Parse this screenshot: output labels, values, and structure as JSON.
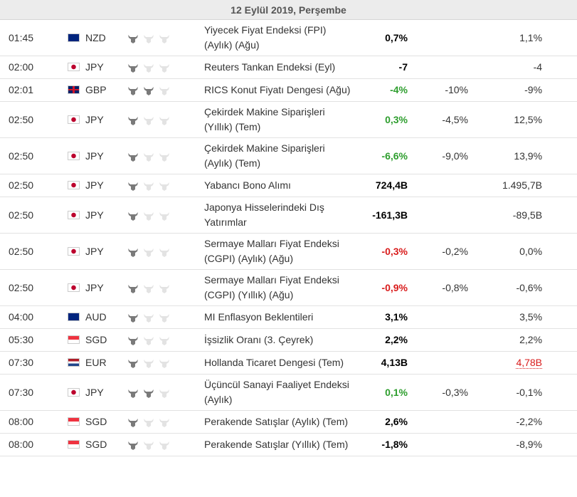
{
  "header": {
    "date": "12 Eylül 2019, Perşembe"
  },
  "table": {
    "rows": [
      {
        "time": "01:45",
        "currency": "NZD",
        "importance": 1,
        "event": "Yiyecek Fiyat Endeksi (FPI) (Aylık) (Ağu)",
        "actual": "0,7%",
        "actual_color": "#000000",
        "previous": "1,1%"
      },
      {
        "time": "02:00",
        "currency": "JPY",
        "importance": 1,
        "event": "Reuters Tankan Endeksi (Eyl)",
        "actual": "-7",
        "actual_color": "#000000",
        "previous": "-4"
      },
      {
        "time": "02:01",
        "currency": "GBP",
        "importance": 2,
        "event": "RICS Konut Fiyatı Dengesi (Ağu)",
        "actual": "-4%",
        "actual_color": "#2e9e2e",
        "forecast": "-10%",
        "previous": "-9%"
      },
      {
        "time": "02:50",
        "currency": "JPY",
        "importance": 1,
        "event": "Çekirdek Makine Siparişleri (Yıllık) (Tem)",
        "actual": "0,3%",
        "actual_color": "#2e9e2e",
        "forecast": "-4,5%",
        "previous": "12,5%"
      },
      {
        "time": "02:50",
        "currency": "JPY",
        "importance": 1,
        "event": "Çekirdek Makine Siparişleri (Aylık) (Tem)",
        "actual": "-6,6%",
        "actual_color": "#2e9e2e",
        "forecast": "-9,0%",
        "previous": "13,9%"
      },
      {
        "time": "02:50",
        "currency": "JPY",
        "importance": 1,
        "event": "Yabancı Bono Alımı",
        "actual": "724,4B",
        "actual_color": "#000000",
        "previous": "1.495,7B"
      },
      {
        "time": "02:50",
        "currency": "JPY",
        "importance": 1,
        "event": "Japonya Hisselerindeki Dış Yatırımlar",
        "actual": "-161,3B",
        "actual_color": "#000000",
        "previous": "-89,5B"
      },
      {
        "time": "02:50",
        "currency": "JPY",
        "importance": 1,
        "event": "Sermaye Malları Fiyat Endeksi (CGPI) (Aylık) (Ağu)",
        "actual": "-0,3%",
        "actual_color": "#d91c1c",
        "forecast": "-0,2%",
        "previous": "0,0%"
      },
      {
        "time": "02:50",
        "currency": "JPY",
        "importance": 1,
        "event": "Sermaye Malları Fiyat Endeksi (CGPI) (Yıllık) (Ağu)",
        "actual": "-0,9%",
        "actual_color": "#d91c1c",
        "forecast": "-0,8%",
        "previous": "-0,6%"
      },
      {
        "time": "04:00",
        "currency": "AUD",
        "importance": 1,
        "event": "MI Enflasyon Beklentileri",
        "actual": "3,1%",
        "actual_color": "#000000",
        "previous": "3,5%"
      },
      {
        "time": "05:30",
        "currency": "SGD",
        "importance": 1,
        "event": "İşsizlik Oranı (3. Çeyrek)",
        "actual": "2,2%",
        "actual_color": "#000000",
        "previous": "2,2%"
      },
      {
        "time": "07:30",
        "currency": "EUR",
        "importance": 1,
        "event": "Hollanda Ticaret Dengesi (Tem)",
        "actual": "4,13B",
        "actual_color": "#000000",
        "previous": "4,78B",
        "previous_color": "#d91c1c"
      },
      {
        "time": "07:30",
        "currency": "JPY",
        "importance": 2,
        "event": "Üçüncül Sanayi Faaliyet Endeksi (Aylık)",
        "actual": "0,1%",
        "actual_color": "#2e9e2e",
        "forecast": "-0,3%",
        "previous": "-0,1%"
      },
      {
        "time": "08:00",
        "currency": "SGD",
        "importance": 1,
        "event": "Perakende Satışlar (Aylık) (Tem)",
        "actual": "2,6%",
        "actual_color": "#000000",
        "previous": "-2,2%"
      },
      {
        "time": "08:00",
        "currency": "SGD",
        "importance": 1,
        "event": "Perakende Satışlar (Yıllık) (Tem)",
        "actual": "-1,8%",
        "actual_color": "#000000",
        "previous": "-8,9%"
      }
    ]
  }
}
